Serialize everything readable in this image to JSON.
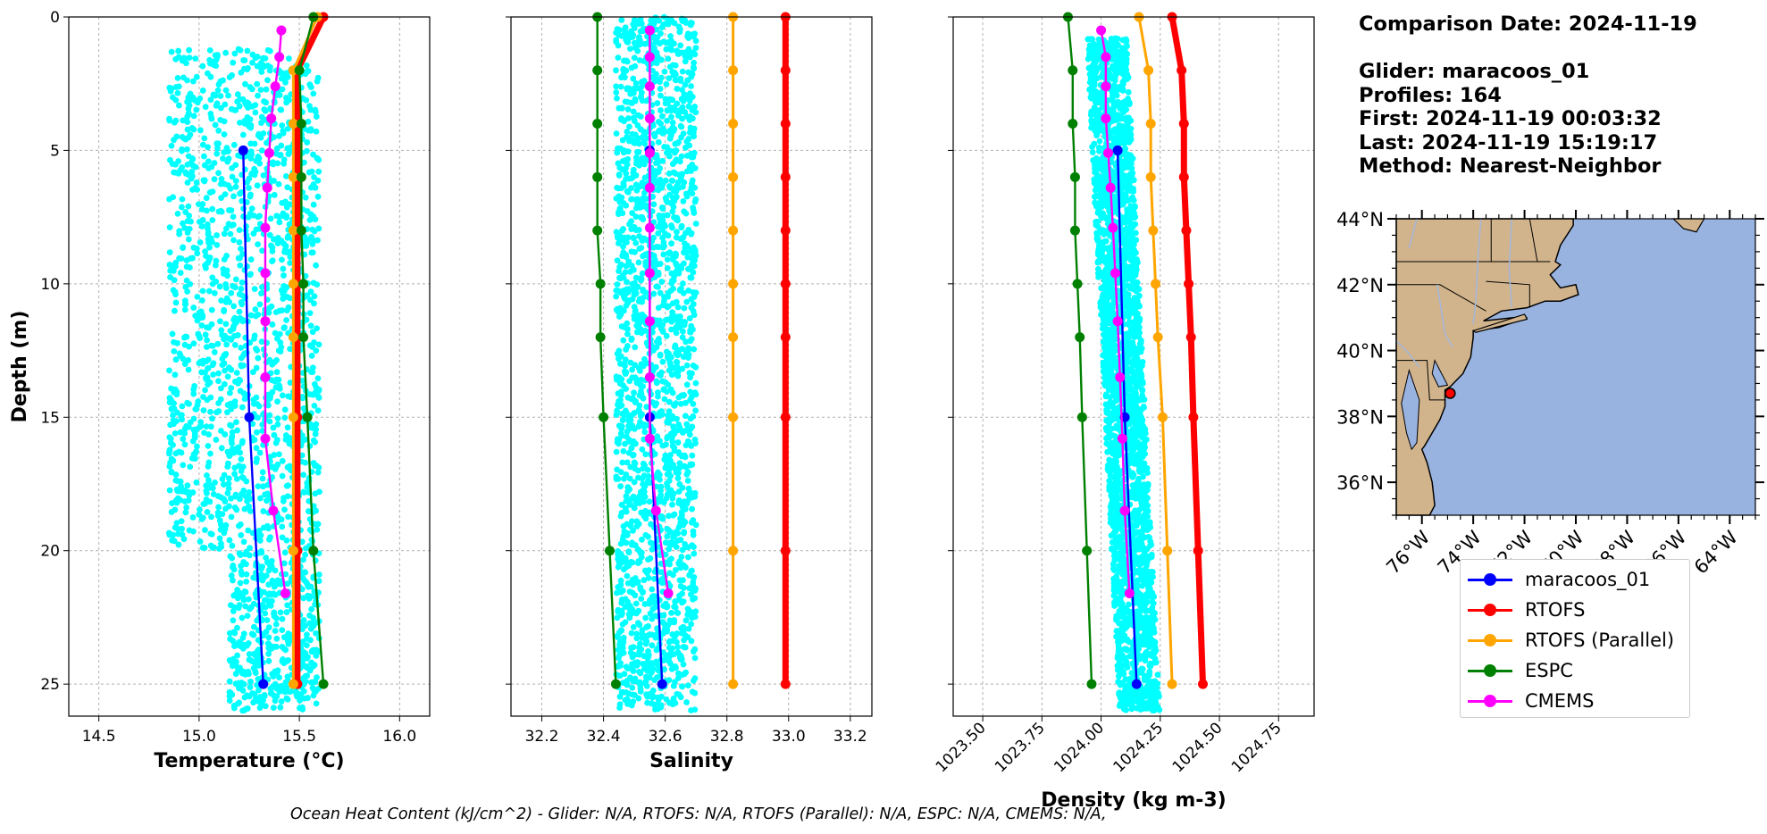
{
  "info": {
    "comparison_date": "Comparison Date: 2024-11-19",
    "glider": "Glider: maracoos_01",
    "profiles": "Profiles: 164",
    "first": "First: 2024-11-19 00:03:32",
    "last": "Last: 2024-11-19 15:19:17",
    "method": "Method: Nearest-Neighbor"
  },
  "footer": "Ocean Heat Content (kJ/cm^2) - Glider: N/A,  RTOFS: N/A,  RTOFS (Parallel): N/A,  ESPC: N/A,  CMEMS: N/A,",
  "legend": [
    {
      "label": "maracoos_01",
      "color": "#0000ff"
    },
    {
      "label": "RTOFS",
      "color": "#ff0000"
    },
    {
      "label": "RTOFS (Parallel)",
      "color": "#ffa500"
    },
    {
      "label": "ESPC",
      "color": "#008000"
    },
    {
      "label": "CMEMS",
      "color": "#ff00ff"
    }
  ],
  "colors": {
    "glider_scatter": "#00ffff",
    "land": "#d2b48c",
    "ocean": "#99b3e0"
  },
  "chart_data": [
    {
      "type": "line",
      "xlabel": "Temperature (°C)",
      "ylabel": "Depth (m)",
      "xlim": [
        14.35,
        16.15
      ],
      "ylim": [
        26.2,
        0
      ],
      "xticks": [
        "14.5",
        "15.0",
        "15.5",
        "16.0"
      ],
      "yticks": [
        "0",
        "5",
        "10",
        "15",
        "20",
        "25"
      ],
      "grid": true,
      "scatter": {
        "name": "glider profiles",
        "x_range": [
          14.85,
          15.6
        ],
        "depth_range": [
          1.2,
          26
        ]
      },
      "series": [
        {
          "name": "maracoos_01",
          "depth": [
            5,
            15,
            25
          ],
          "values": [
            15.22,
            15.25,
            15.32
          ]
        },
        {
          "name": "RTOFS",
          "depth": [
            0,
            2,
            4,
            6,
            8,
            10,
            12,
            15,
            20,
            25
          ],
          "values": [
            15.62,
            15.49,
            15.49,
            15.49,
            15.49,
            15.49,
            15.49,
            15.49,
            15.49,
            15.49
          ]
        },
        {
          "name": "RTOFS (Parallel)",
          "depth": [
            0,
            2,
            4,
            6,
            8,
            10,
            12,
            15,
            20,
            25
          ],
          "values": [
            15.59,
            15.47,
            15.47,
            15.47,
            15.47,
            15.47,
            15.47,
            15.47,
            15.47,
            15.47
          ]
        },
        {
          "name": "ESPC",
          "depth": [
            0,
            2,
            4,
            6,
            8,
            10,
            12,
            15,
            20,
            25
          ],
          "values": [
            15.57,
            15.5,
            15.51,
            15.51,
            15.51,
            15.52,
            15.52,
            15.54,
            15.57,
            15.62
          ]
        },
        {
          "name": "CMEMS",
          "depth": [
            0.5,
            1.5,
            2.6,
            3.8,
            5.1,
            6.4,
            7.9,
            9.6,
            11.4,
            13.5,
            15.8,
            18.5,
            21.6
          ],
          "values": [
            15.41,
            15.4,
            15.38,
            15.36,
            15.35,
            15.34,
            15.33,
            15.33,
            15.33,
            15.33,
            15.33,
            15.37,
            15.43
          ]
        }
      ]
    },
    {
      "type": "line",
      "xlabel": "Salinity",
      "ylabel": "",
      "xlim": [
        32.1,
        33.27
      ],
      "ylim": [
        26.2,
        0
      ],
      "xticks": [
        "32.2",
        "32.4",
        "32.6",
        "32.8",
        "33.0",
        "33.2"
      ],
      "yticks": [],
      "grid": true,
      "scatter": {
        "name": "glider profiles",
        "x_range": [
          32.44,
          32.7
        ],
        "depth_range": [
          0,
          26
        ]
      },
      "series": [
        {
          "name": "maracoos_01",
          "depth": [
            5,
            15,
            25
          ],
          "values": [
            32.55,
            32.55,
            32.59
          ]
        },
        {
          "name": "RTOFS",
          "depth": [
            0,
            2,
            4,
            6,
            8,
            10,
            12,
            15,
            20,
            25
          ],
          "values": [
            32.99,
            32.99,
            32.99,
            32.99,
            32.99,
            32.99,
            32.99,
            32.99,
            32.99,
            32.99
          ]
        },
        {
          "name": "RTOFS (Parallel)",
          "depth": [
            0,
            2,
            4,
            6,
            8,
            10,
            12,
            15,
            20,
            25
          ],
          "values": [
            32.82,
            32.82,
            32.82,
            32.82,
            32.82,
            32.82,
            32.82,
            32.82,
            32.82,
            32.82
          ]
        },
        {
          "name": "ESPC",
          "depth": [
            0,
            2,
            4,
            6,
            8,
            10,
            12,
            15,
            20,
            25
          ],
          "values": [
            32.38,
            32.38,
            32.38,
            32.38,
            32.38,
            32.39,
            32.39,
            32.4,
            32.42,
            32.44
          ]
        },
        {
          "name": "CMEMS",
          "depth": [
            0.5,
            1.5,
            2.6,
            3.8,
            5.1,
            6.4,
            7.9,
            9.6,
            11.4,
            13.5,
            15.8,
            18.5,
            21.6
          ],
          "values": [
            32.55,
            32.55,
            32.55,
            32.55,
            32.55,
            32.55,
            32.55,
            32.55,
            32.55,
            32.55,
            32.55,
            32.57,
            32.61
          ]
        }
      ]
    },
    {
      "type": "line",
      "xlabel": "Density (kg m-3)",
      "ylabel": "",
      "xlim": [
        1023.375,
        1024.9
      ],
      "ylim": [
        26.2,
        0
      ],
      "xticks": [
        "1023.50",
        "1023.75",
        "1024.00",
        "1024.25",
        "1024.50",
        "1024.75"
      ],
      "yticks": [],
      "grid": true,
      "scatter": {
        "name": "glider profiles",
        "x_range": [
          1023.97,
          1024.2
        ],
        "depth_range": [
          0.8,
          26
        ]
      },
      "series": [
        {
          "name": "maracoos_01",
          "depth": [
            5,
            15,
            25
          ],
          "values": [
            1024.07,
            1024.1,
            1024.15
          ]
        },
        {
          "name": "RTOFS",
          "depth": [
            0,
            2,
            4,
            6,
            8,
            10,
            12,
            15,
            20,
            25
          ],
          "values": [
            1024.3,
            1024.34,
            1024.35,
            1024.35,
            1024.36,
            1024.37,
            1024.38,
            1024.39,
            1024.41,
            1024.43
          ]
        },
        {
          "name": "RTOFS (Parallel)",
          "depth": [
            0,
            2,
            4,
            6,
            8,
            10,
            12,
            15,
            20,
            25
          ],
          "values": [
            1024.16,
            1024.2,
            1024.21,
            1024.21,
            1024.22,
            1024.23,
            1024.24,
            1024.26,
            1024.28,
            1024.3
          ]
        },
        {
          "name": "ESPC",
          "depth": [
            0,
            2,
            4,
            6,
            8,
            10,
            12,
            15,
            20,
            25
          ],
          "values": [
            1023.86,
            1023.88,
            1023.88,
            1023.89,
            1023.89,
            1023.9,
            1023.91,
            1023.92,
            1023.94,
            1023.96
          ]
        },
        {
          "name": "CMEMS",
          "depth": [
            0.5,
            1.5,
            2.6,
            3.8,
            5.1,
            6.4,
            7.9,
            9.6,
            11.4,
            13.5,
            15.8,
            18.5,
            21.6
          ],
          "values": [
            1024.0,
            1024.02,
            1024.02,
            1024.02,
            1024.03,
            1024.04,
            1024.05,
            1024.06,
            1024.07,
            1024.08,
            1024.09,
            1024.1,
            1024.12
          ]
        }
      ]
    }
  ],
  "map": {
    "lon_ticks": [
      "76°W",
      "74°W",
      "72°W",
      "70°W",
      "68°W",
      "66°W",
      "64°W"
    ],
    "lat_ticks": [
      "44°N",
      "42°N",
      "40°N",
      "38°N",
      "36°N"
    ],
    "glider_position": {
      "lon": -74.9,
      "lat": 38.7
    }
  }
}
